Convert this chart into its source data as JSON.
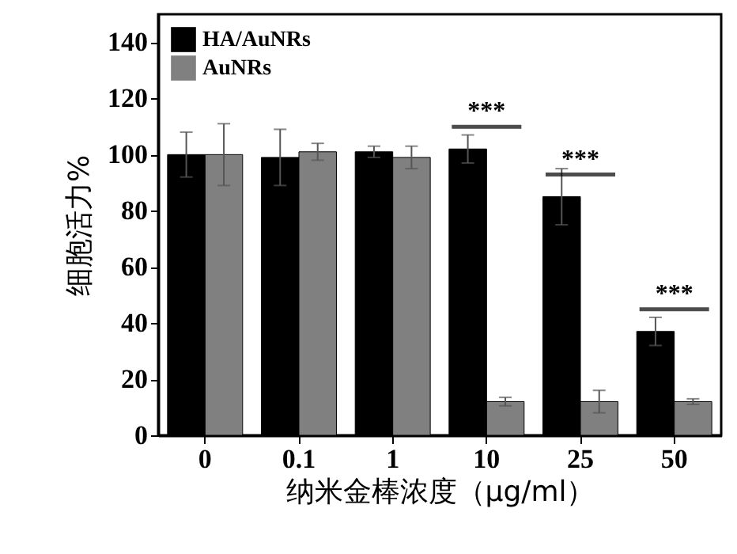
{
  "chart_data": {
    "type": "bar",
    "xlabel": "纳米金棒浓度（μg/ml）",
    "ylabel": "细胞活力%",
    "categories": [
      "0",
      "0.1",
      "1",
      "10",
      "25",
      "50"
    ],
    "series": [
      {
        "name": "HA/AuNRs",
        "color": "#000000",
        "values": [
          100,
          99,
          101,
          102,
          85,
          37
        ],
        "errors": [
          8,
          10,
          2,
          5,
          10,
          5
        ]
      },
      {
        "name": "AuNRs",
        "color": "#808080",
        "values": [
          100,
          101,
          99,
          12,
          12,
          12
        ],
        "errors": [
          11,
          3,
          4,
          1.5,
          4,
          1
        ]
      }
    ],
    "ylim": [
      0,
      150
    ],
    "yticks": [
      0,
      20,
      40,
      60,
      80,
      100,
      120,
      140
    ],
    "grid": false,
    "legend": "top left",
    "annotations": [
      {
        "text": "***",
        "x": "10",
        "y": 102
      },
      {
        "text": "***",
        "x": "25",
        "y": 85
      },
      {
        "text": "***",
        "x": "50",
        "y": 37
      }
    ]
  }
}
